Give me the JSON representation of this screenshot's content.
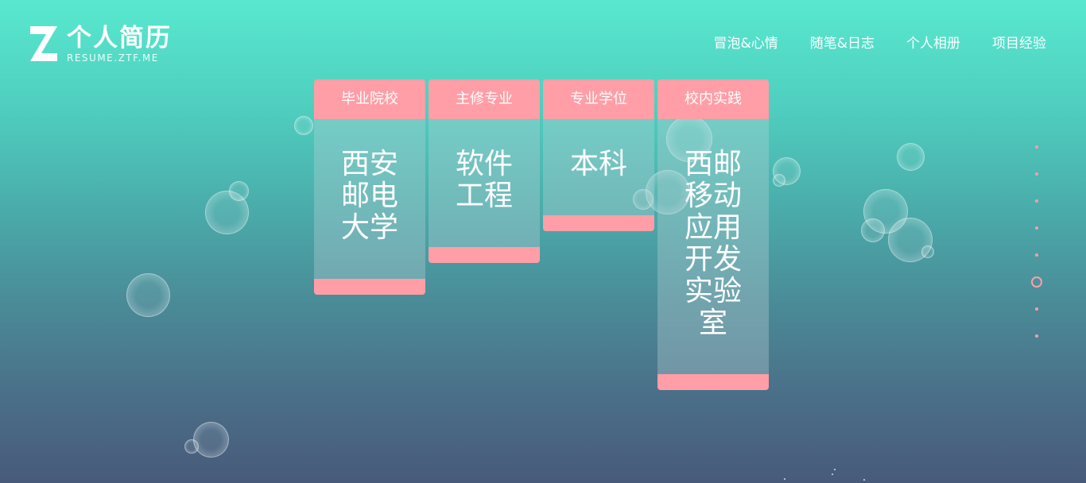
{
  "logo": {
    "title": "个人简历",
    "subtitle": "RESUME.ZTF.ME",
    "icon": "z-logo-icon"
  },
  "nav": {
    "items": [
      {
        "label": "冒泡&心情"
      },
      {
        "label": "随笔&日志"
      },
      {
        "label": "个人相册"
      },
      {
        "label": "项目经验"
      }
    ]
  },
  "cards": [
    {
      "title": "毕业院校",
      "value": "西安邮电大学"
    },
    {
      "title": "主修专业",
      "value": "软件工程"
    },
    {
      "title": "专业学位",
      "value": "本科"
    },
    {
      "title": "校内实践",
      "value": "西邮移动应用开发实验室"
    }
  ],
  "side_nav": {
    "count": 8,
    "active_index": 5
  },
  "colors": {
    "accent": "#ff9ea6",
    "bg_top": "#58e8cf",
    "bg_bottom": "#485a7a"
  }
}
